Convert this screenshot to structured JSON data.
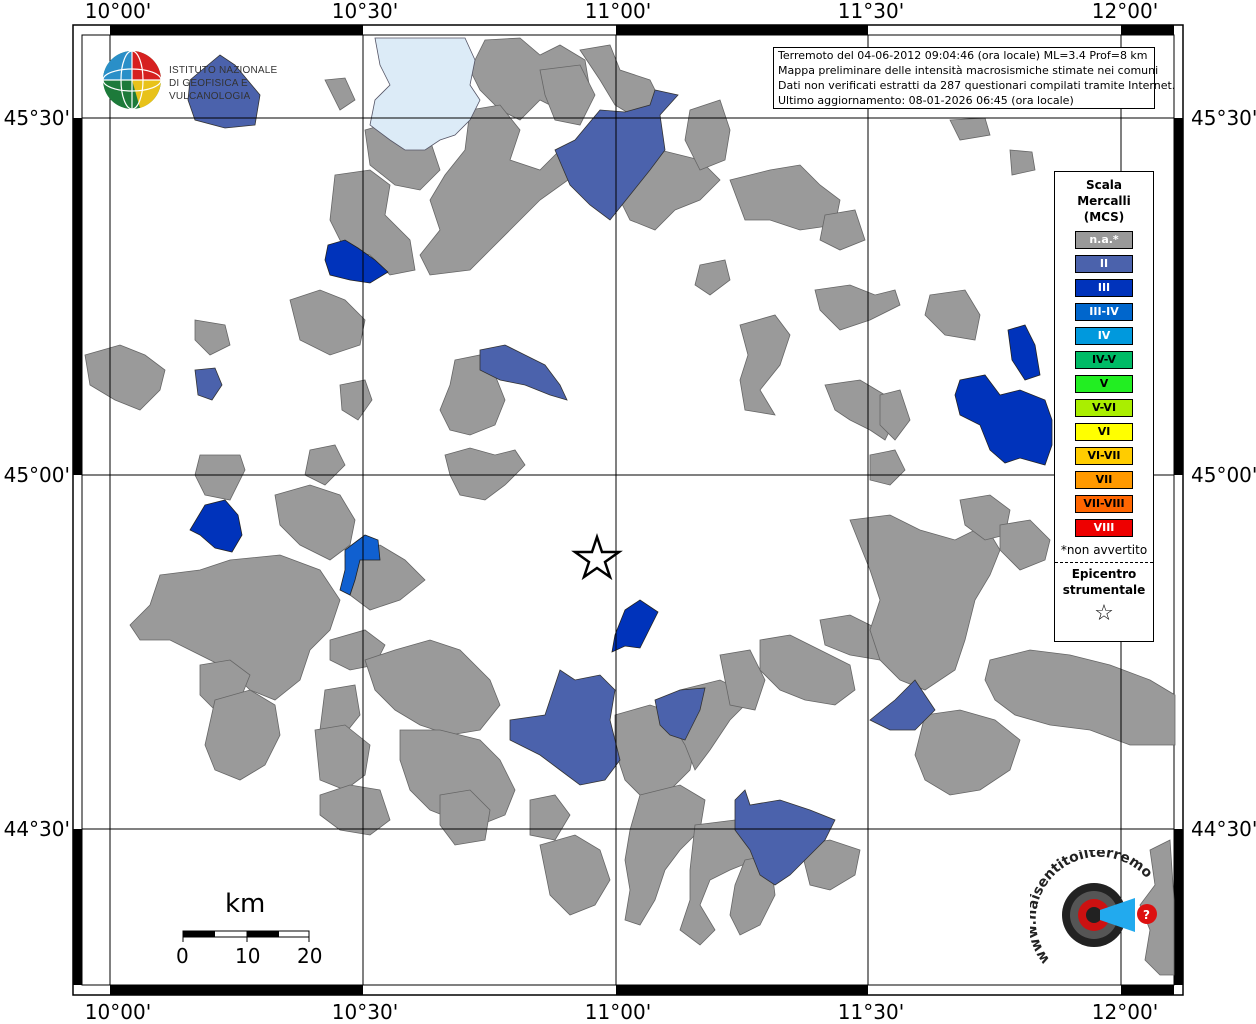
{
  "info": {
    "line1": "Terremoto del 04-06-2012 09:04:46 (ora locale) ML=3.4 Prof=8 km",
    "line2": "Mappa preliminare delle intensità macrosismiche stimate nei comuni",
    "line3": "Dati non verificati estratti da 287 questionari compilati tramite Internet.",
    "line4": "Ultimo aggiornamento: 08-01-2026 06:45 (ora locale)"
  },
  "logo": {
    "line1": "ISTITUTO NAZIONALE",
    "line2": "DI GEOFISICA E VULCANOLOGIA"
  },
  "legend": {
    "title1": "Scala",
    "title2": "Mercalli",
    "title3": "(MCS)",
    "items": [
      {
        "label": "n.a.*",
        "color": "#999999",
        "text_color": "#ffffff"
      },
      {
        "label": "II",
        "color": "#4b62ac",
        "text_color": "#ffffff"
      },
      {
        "label": "III",
        "color": "#0033bb",
        "text_color": "#ffffff"
      },
      {
        "label": "III-IV",
        "color": "#0066cc",
        "text_color": "#ffffff"
      },
      {
        "label": "IV",
        "color": "#0099dd",
        "text_color": "#ffffff"
      },
      {
        "label": "IV-V",
        "color": "#00bb66",
        "text_color": "#000000"
      },
      {
        "label": "V",
        "color": "#22ee22",
        "text_color": "#000000"
      },
      {
        "label": "V-VI",
        "color": "#aaee00",
        "text_color": "#000000"
      },
      {
        "label": "VI",
        "color": "#ffff00",
        "text_color": "#000000"
      },
      {
        "label": "VI-VII",
        "color": "#ffcc00",
        "text_color": "#000000"
      },
      {
        "label": "VII",
        "color": "#ff9900",
        "text_color": "#000000"
      },
      {
        "label": "VII-VIII",
        "color": "#ff6600",
        "text_color": "#000000"
      },
      {
        "label": "VIII",
        "color": "#ee0000",
        "text_color": "#ffffff"
      }
    ],
    "note": "*non avvertito",
    "epicenter1": "Epicentro",
    "epicenter2": "strumentale",
    "star": "☆"
  },
  "axes": {
    "lon_labels": [
      "10°00'",
      "10°30'",
      "11°00'",
      "11°30'",
      "12°00'"
    ],
    "lat_labels": [
      "45°30'",
      "45°00'",
      "44°30'"
    ]
  },
  "scale_bar": {
    "title": "km",
    "labels": [
      "0",
      "10",
      "20"
    ]
  },
  "watermark": {
    "text": "www.haisentitoilterremoto.it"
  }
}
